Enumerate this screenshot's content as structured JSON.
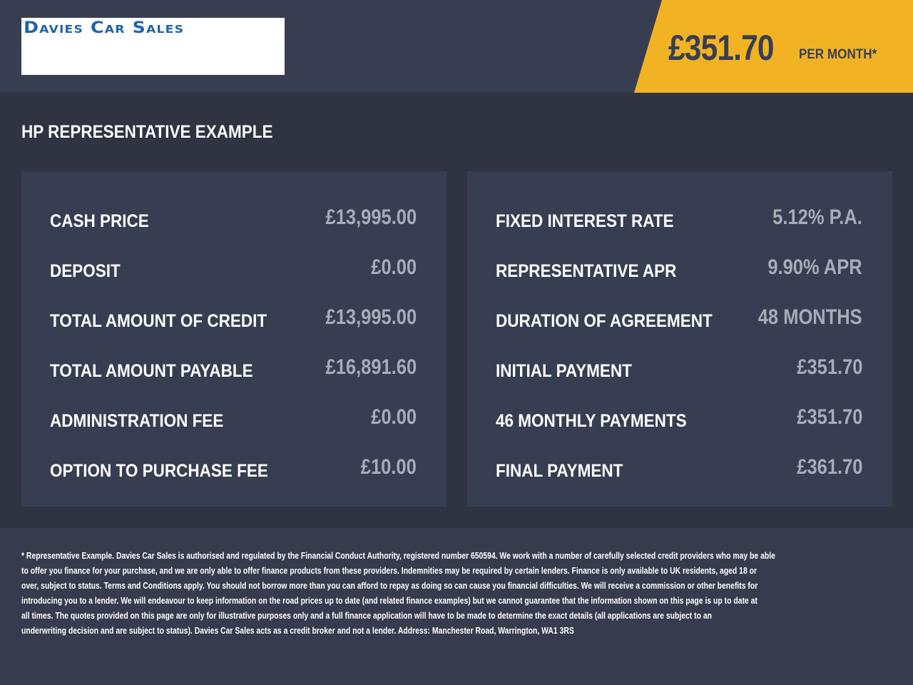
{
  "header": {
    "logo_text": "Davies Car Sales",
    "price": "£351.70",
    "per_month": "PER MONTH*",
    "accent_color": "#f1b324"
  },
  "title": "HP REPRESENTATIVE EXAMPLE",
  "left": [
    {
      "label": "CASH PRICE",
      "value": "£13,995.00"
    },
    {
      "label": "DEPOSIT",
      "value": "£0.00"
    },
    {
      "label": "TOTAL AMOUNT OF CREDIT",
      "value": "£13,995.00"
    },
    {
      "label": "TOTAL AMOUNT PAYABLE",
      "value": "£16,891.60"
    },
    {
      "label": "ADMINISTRATION FEE",
      "value": "£0.00"
    },
    {
      "label": "OPTION TO PURCHASE FEE",
      "value": "£10.00"
    }
  ],
  "right": [
    {
      "label": "FIXED INTEREST RATE",
      "value": "5.12% P.A."
    },
    {
      "label": "REPRESENTATIVE APR",
      "value": "9.90% APR"
    },
    {
      "label": "DURATION OF AGREEMENT",
      "value": "48 MONTHS"
    },
    {
      "label": "INITIAL PAYMENT",
      "value": "£351.70"
    },
    {
      "label": "46 MONTHLY PAYMENTS",
      "value": "£351.70"
    },
    {
      "label": "FINAL PAYMENT",
      "value": "£361.70"
    }
  ],
  "footer": [
    "* Representative Example. Davies Car Sales  is authorised and regulated by the Financial Conduct Authority, registered number 650594. We work with a number of carefully selected credit providers who may be able",
    "to offer you finance for your purchase, and we are only able to offer finance products from these providers. Indemnities may be required by certain lenders. Finance is only available to UK residents, aged 18 or",
    "over, subject to status. Terms and Conditions apply. You should not borrow more than you can afford to repay as doing so can cause you financial difficulties. We will receive a commission or other benefits for",
    "introducing you to a lender. We will endeavour to keep information on the road prices up to date (and related finance examples) but we cannot guarantee that the information shown on this page is up to date at",
    "all times. The quotes provided on this page are only for illustrative purposes only and a full finance application will have to be made to determine the exact details (all applications are subject to an",
    "underwriting decision and are subject to status). Davies Car Sales  acts as a credit broker and not a lender. Address: Manchester Road, Warrington, WA1 3RS"
  ]
}
